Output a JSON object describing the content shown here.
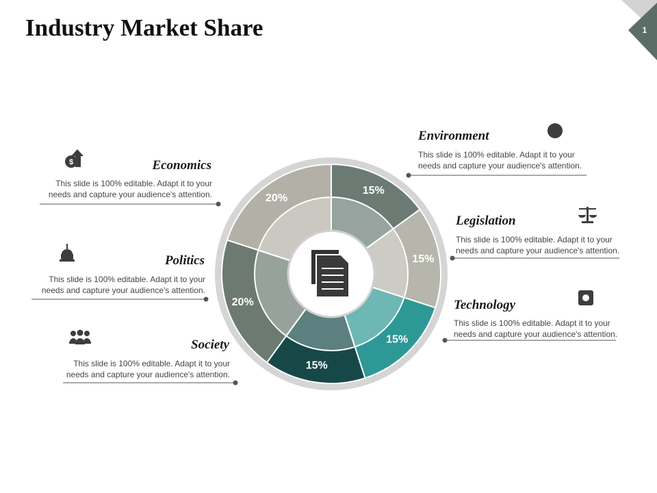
{
  "chart_data": {
    "type": "donut",
    "title": "Industry Market Share",
    "page_number": "1",
    "categories": [
      "Environment",
      "Legislation",
      "Technology",
      "Society",
      "Politics",
      "Economics"
    ],
    "values": [
      15,
      15,
      15,
      15,
      20,
      20
    ],
    "value_labels": [
      "15%",
      "15%",
      "15%",
      "15%",
      "20%",
      "20%"
    ],
    "colors": [
      "#6b7b74",
      "#b6b6ad",
      "#2e9896",
      "#164848",
      "#6c7a72",
      "#b3b1a7"
    ],
    "descriptions": [
      [
        "This slide is 100% editable. Adapt it to your",
        "needs and capture your audience's attention."
      ],
      [
        "This slide is 100% editable. Adapt it to your",
        "needs and capture your audience's attention."
      ],
      [
        "This slide is 100% editable. Adapt it to your",
        "needs and capture your audience's attention."
      ],
      [
        "This slide is 100% editable. Adapt it to your",
        "needs and capture your audience's attention."
      ],
      [
        "This slide is 100% editable. Adapt it to your",
        "needs and capture your audience's attention."
      ],
      [
        "This slide is 100% editable. Adapt it to your",
        "needs and capture your audience's attention."
      ]
    ]
  }
}
